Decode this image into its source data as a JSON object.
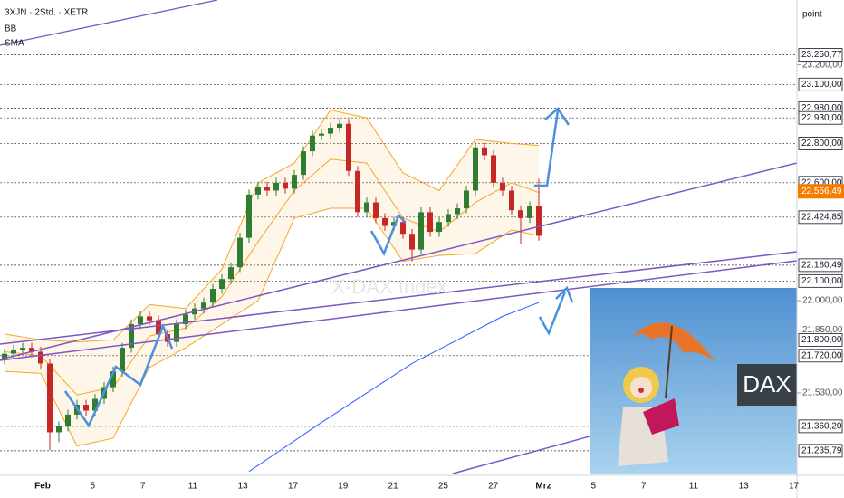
{
  "chart_data": {
    "type": "candlestick",
    "title": "3XJN · 2Std. · XETR",
    "axis_unit": "point",
    "watermark": "X-DAX Index",
    "image_label": "DAX",
    "ylim": [
      21120,
      23530
    ],
    "up_color": "#2e7d32",
    "down_color": "#c62828",
    "ohlc": [
      [
        21700,
        21755,
        21675,
        21730
      ],
      [
        21730,
        21775,
        21705,
        21750
      ],
      [
        21750,
        21785,
        21725,
        21760
      ],
      [
        21760,
        21785,
        21715,
        21740
      ],
      [
        21740,
        21765,
        21655,
        21680
      ],
      [
        21680,
        21705,
        21240,
        21330
      ],
      [
        21330,
        21385,
        21280,
        21360
      ],
      [
        21360,
        21445,
        21335,
        21420
      ],
      [
        21420,
        21495,
        21395,
        21470
      ],
      [
        21470,
        21495,
        21415,
        21440
      ],
      [
        21440,
        21525,
        21415,
        21500
      ],
      [
        21500,
        21585,
        21475,
        21560
      ],
      [
        21560,
        21665,
        21535,
        21640
      ],
      [
        21640,
        21785,
        21615,
        21760
      ],
      [
        21760,
        21905,
        21735,
        21880
      ],
      [
        21880,
        21945,
        21855,
        21920
      ],
      [
        21920,
        21945,
        21875,
        21900
      ],
      [
        21900,
        21925,
        21805,
        21830
      ],
      [
        21830,
        21855,
        21765,
        21790
      ],
      [
        21790,
        21905,
        21765,
        21880
      ],
      [
        21880,
        21955,
        21855,
        21930
      ],
      [
        21930,
        21985,
        21905,
        21960
      ],
      [
        21960,
        22015,
        21935,
        21990
      ],
      [
        21990,
        22085,
        21965,
        22060
      ],
      [
        22060,
        22135,
        22035,
        22110
      ],
      [
        22110,
        22195,
        22085,
        22170
      ],
      [
        22170,
        22345,
        22145,
        22320
      ],
      [
        22320,
        22565,
        22295,
        22540
      ],
      [
        22540,
        22605,
        22515,
        22580
      ],
      [
        22580,
        22605,
        22535,
        22560
      ],
      [
        22560,
        22625,
        22535,
        22600
      ],
      [
        22600,
        22625,
        22545,
        22570
      ],
      [
        22570,
        22665,
        22545,
        22640
      ],
      [
        22640,
        22785,
        22615,
        22760
      ],
      [
        22760,
        22865,
        22735,
        22840
      ],
      [
        22840,
        22875,
        22815,
        22850
      ],
      [
        22850,
        22905,
        22825,
        22880
      ],
      [
        22880,
        22925,
        22855,
        22900
      ],
      [
        22900,
        22925,
        22635,
        22660
      ],
      [
        22660,
        22685,
        22425,
        22450
      ],
      [
        22450,
        22525,
        22425,
        22500
      ],
      [
        22500,
        22525,
        22395,
        22420
      ],
      [
        22420,
        22445,
        22355,
        22380
      ],
      [
        22380,
        22425,
        22355,
        22400
      ],
      [
        22400,
        22425,
        22315,
        22340
      ],
      [
        22340,
        22365,
        22200,
        22260
      ],
      [
        22260,
        22475,
        22235,
        22450
      ],
      [
        22450,
        22475,
        22325,
        22350
      ],
      [
        22350,
        22425,
        22325,
        22400
      ],
      [
        22400,
        22465,
        22375,
        22440
      ],
      [
        22440,
        22495,
        22415,
        22470
      ],
      [
        22470,
        22585,
        22445,
        22560
      ],
      [
        22560,
        22805,
        22535,
        22780
      ],
      [
        22780,
        22805,
        22715,
        22740
      ],
      [
        22740,
        22765,
        22575,
        22600
      ],
      [
        22600,
        22625,
        22535,
        22560
      ],
      [
        22560,
        22585,
        22435,
        22460
      ],
      [
        22460,
        22485,
        22290,
        22420
      ],
      [
        22420,
        22505,
        22395,
        22480
      ],
      [
        22480,
        22620,
        22305,
        22330
      ]
    ],
    "bands": {
      "name": "BB",
      "color": "#f5a623",
      "x": [
        0,
        4,
        8,
        12,
        16,
        20,
        24,
        28,
        32,
        36,
        40,
        44,
        48,
        52,
        56,
        59
      ],
      "upper": [
        21830,
        21800,
        21790,
        21800,
        21980,
        21960,
        22160,
        22600,
        22700,
        22970,
        22930,
        22650,
        22560,
        22820,
        22800,
        22790
      ],
      "middle": [
        21740,
        21720,
        21520,
        21560,
        21820,
        21860,
        22020,
        22300,
        22560,
        22720,
        22700,
        22420,
        22350,
        22500,
        22600,
        22550
      ],
      "lower": [
        21640,
        21630,
        21260,
        21300,
        21660,
        21760,
        21880,
        22000,
        22420,
        22470,
        22470,
        22200,
        22230,
        22240,
        22360,
        22330
      ]
    },
    "sma": {
      "name": "SMA",
      "color": "#2962ff",
      "x": [
        27,
        35,
        45,
        55,
        59
      ],
      "values": [
        21130,
        21380,
        21680,
        21920,
        21990
      ]
    },
    "yticks": [
      {
        "value": 23200,
        "label": "23.200,00"
      },
      {
        "value": 22000,
        "label": "22.000,00"
      },
      {
        "value": 21850,
        "label": "21.850,00"
      },
      {
        "value": 21530,
        "label": "21.530,00"
      }
    ],
    "levels": [
      {
        "value": 23250.77,
        "label": "23.250,77"
      },
      {
        "value": 23100,
        "label": "23.100,00"
      },
      {
        "value": 22980,
        "label": "22.980,00"
      },
      {
        "value": 22930,
        "label": "22.930,00"
      },
      {
        "value": 22800,
        "label": "22.800,00"
      },
      {
        "value": 22600,
        "label": "22.600,00"
      },
      {
        "value": 22424.85,
        "label": "22.424,85"
      },
      {
        "value": 22180.49,
        "label": "22.180,49"
      },
      {
        "value": 22100,
        "label": "22.100,00"
      },
      {
        "value": 21800,
        "label": "21.800,00"
      },
      {
        "value": 21720,
        "label": "21.720,00"
      },
      {
        "value": 21360.2,
        "label": "21.360,20"
      },
      {
        "value": 21235.79,
        "label": "21.235,79"
      }
    ],
    "last_price": {
      "value": 22556.49,
      "label": "22.556,49",
      "color": "#f57c00"
    },
    "xlabels": [
      "Feb",
      "5",
      "7",
      "11",
      "13",
      "17",
      "19",
      "21",
      "25",
      "27",
      "Mrz",
      "5",
      "7",
      "11",
      "13",
      "17"
    ]
  }
}
